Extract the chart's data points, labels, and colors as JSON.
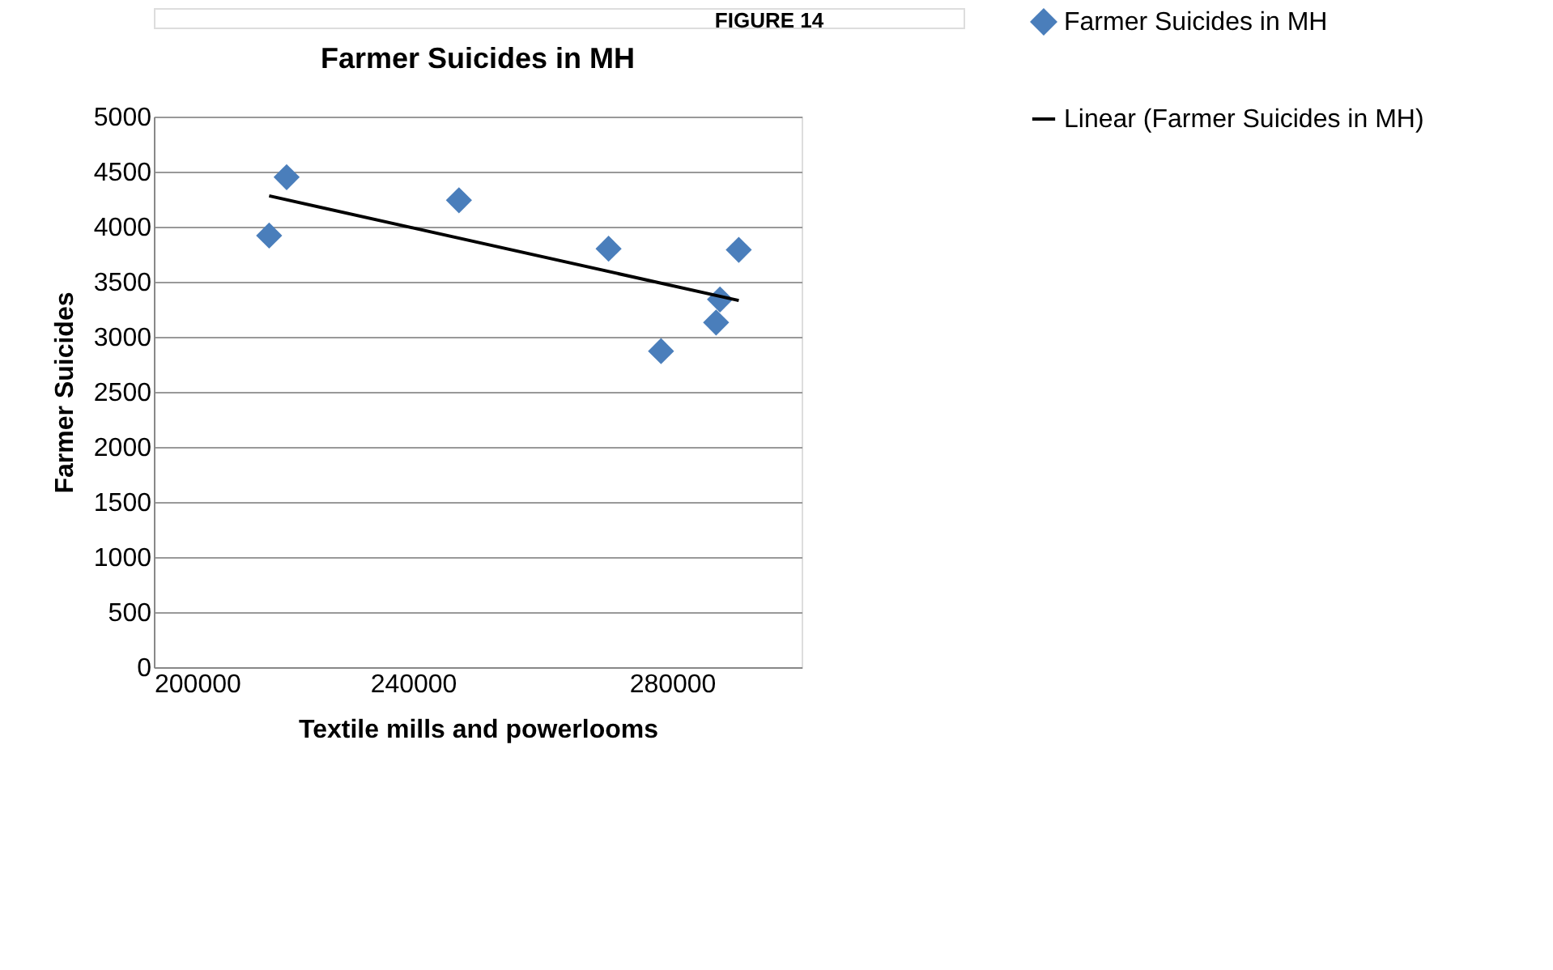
{
  "chart_data": {
    "type": "scatter",
    "title": "Farmer Suicides in MH",
    "xlabel": "Textile mills and powerlooms",
    "ylabel": "Farmer Suicides",
    "annotations": [
      "FIGURE 14"
    ],
    "xlim": [
      200000,
      300000
    ],
    "xticks": [
      200000,
      240000,
      280000
    ],
    "ylim": [
      0,
      5000
    ],
    "yticks": [
      0,
      500,
      1000,
      1500,
      2000,
      2500,
      3000,
      3500,
      4000,
      4500,
      5000
    ],
    "grid": "y",
    "legend": "right",
    "series": [
      {
        "name": "Farmer Suicides in MH",
        "marker": "diamond",
        "color": "#4a7ebb",
        "x": [
          217800,
          220500,
          247100,
          270200,
          278300,
          287400,
          286800,
          290300
        ],
        "values": [
          3920,
          4450,
          4240,
          3800,
          2870,
          3340,
          3130,
          3790
        ]
      },
      {
        "name": "Linear (Farmer Suicides in MH)",
        "type": "line",
        "marker": "none",
        "line_style": "solid",
        "color": "#000000",
        "x": [
          217800,
          290300
        ],
        "values": [
          4280,
          3330
        ]
      }
    ]
  }
}
